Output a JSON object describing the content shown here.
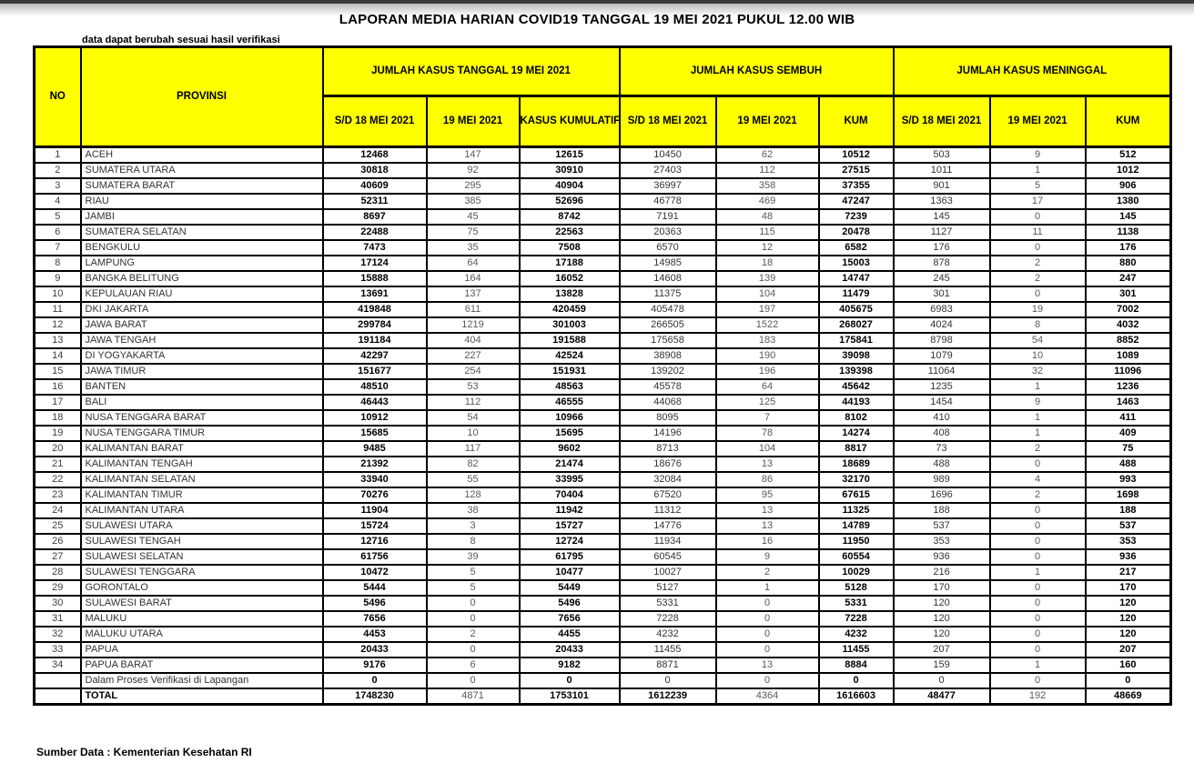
{
  "page": {
    "title": "LAPORAN MEDIA HARIAN COVID19 TANGGAL 19 MEI 2021 PUKUL 12.00 WIB",
    "note": "data dapat berubah sesuai hasil verifikasi",
    "source": "Sumber Data : Kementerian Kesehatan RI"
  },
  "colors": {
    "header_bg": "#FFFF00",
    "border": "#000000",
    "muted_number": "#595959"
  },
  "table": {
    "columns": {
      "no": "NO",
      "provinsi": "PROVINSI",
      "group_kasus": "JUMLAH KASUS TANGGAL 19 MEI 2021",
      "group_sembuh": "JUMLAH KASUS SEMBUH",
      "group_meninggal": "JUMLAH KASUS MENINGGAL"
    },
    "sub_headers": [
      "S/D 18 MEI 2021",
      "19 MEI 2021",
      "KASUS KUMULATIF",
      "S/D 18 MEI 2021",
      "19 MEI 2021",
      "KUM",
      "S/D 18 MEI 2021",
      "19 MEI 2021",
      "KUM"
    ],
    "rows": [
      {
        "no": "1",
        "provinsi": "ACEH",
        "k_sd": "12468",
        "k_19": "147",
        "k_kum": "12615",
        "s_sd": "10450",
        "s_19": "62",
        "s_kum": "10512",
        "m_sd": "503",
        "m_19": "9",
        "m_kum": "512"
      },
      {
        "no": "2",
        "provinsi": "SUMATERA UTARA",
        "k_sd": "30818",
        "k_19": "92",
        "k_kum": "30910",
        "s_sd": "27403",
        "s_19": "112",
        "s_kum": "27515",
        "m_sd": "1011",
        "m_19": "1",
        "m_kum": "1012"
      },
      {
        "no": "3",
        "provinsi": "SUMATERA BARAT",
        "k_sd": "40609",
        "k_19": "295",
        "k_kum": "40904",
        "s_sd": "36997",
        "s_19": "358",
        "s_kum": "37355",
        "m_sd": "901",
        "m_19": "5",
        "m_kum": "906"
      },
      {
        "no": "4",
        "provinsi": "RIAU",
        "k_sd": "52311",
        "k_19": "385",
        "k_kum": "52696",
        "s_sd": "46778",
        "s_19": "469",
        "s_kum": "47247",
        "m_sd": "1363",
        "m_19": "17",
        "m_kum": "1380"
      },
      {
        "no": "5",
        "provinsi": "JAMBI",
        "k_sd": "8697",
        "k_19": "45",
        "k_kum": "8742",
        "s_sd": "7191",
        "s_19": "48",
        "s_kum": "7239",
        "m_sd": "145",
        "m_19": "0",
        "m_kum": "145"
      },
      {
        "no": "6",
        "provinsi": "SUMATERA SELATAN",
        "k_sd": "22488",
        "k_19": "75",
        "k_kum": "22563",
        "s_sd": "20363",
        "s_19": "115",
        "s_kum": "20478",
        "m_sd": "1127",
        "m_19": "11",
        "m_kum": "1138"
      },
      {
        "no": "7",
        "provinsi": "BENGKULU",
        "k_sd": "7473",
        "k_19": "35",
        "k_kum": "7508",
        "s_sd": "6570",
        "s_19": "12",
        "s_kum": "6582",
        "m_sd": "176",
        "m_19": "0",
        "m_kum": "176"
      },
      {
        "no": "8",
        "provinsi": "LAMPUNG",
        "k_sd": "17124",
        "k_19": "64",
        "k_kum": "17188",
        "s_sd": "14985",
        "s_19": "18",
        "s_kum": "15003",
        "m_sd": "878",
        "m_19": "2",
        "m_kum": "880"
      },
      {
        "no": "9",
        "provinsi": "BANGKA BELITUNG",
        "k_sd": "15888",
        "k_19": "164",
        "k_kum": "16052",
        "s_sd": "14608",
        "s_19": "139",
        "s_kum": "14747",
        "m_sd": "245",
        "m_19": "2",
        "m_kum": "247"
      },
      {
        "no": "10",
        "provinsi": "KEPULAUAN RIAU",
        "k_sd": "13691",
        "k_19": "137",
        "k_kum": "13828",
        "s_sd": "11375",
        "s_19": "104",
        "s_kum": "11479",
        "m_sd": "301",
        "m_19": "0",
        "m_kum": "301"
      },
      {
        "no": "11",
        "provinsi": "DKI JAKARTA",
        "k_sd": "419848",
        "k_19": "611",
        "k_kum": "420459",
        "s_sd": "405478",
        "s_19": "197",
        "s_kum": "405675",
        "m_sd": "6983",
        "m_19": "19",
        "m_kum": "7002"
      },
      {
        "no": "12",
        "provinsi": "JAWA BARAT",
        "k_sd": "299784",
        "k_19": "1219",
        "k_kum": "301003",
        "s_sd": "266505",
        "s_19": "1522",
        "s_kum": "268027",
        "m_sd": "4024",
        "m_19": "8",
        "m_kum": "4032"
      },
      {
        "no": "13",
        "provinsi": "JAWA TENGAH",
        "k_sd": "191184",
        "k_19": "404",
        "k_kum": "191588",
        "s_sd": "175658",
        "s_19": "183",
        "s_kum": "175841",
        "m_sd": "8798",
        "m_19": "54",
        "m_kum": "8852"
      },
      {
        "no": "14",
        "provinsi": "DI YOGYAKARTA",
        "k_sd": "42297",
        "k_19": "227",
        "k_kum": "42524",
        "s_sd": "38908",
        "s_19": "190",
        "s_kum": "39098",
        "m_sd": "1079",
        "m_19": "10",
        "m_kum": "1089"
      },
      {
        "no": "15",
        "provinsi": "JAWA TIMUR",
        "k_sd": "151677",
        "k_19": "254",
        "k_kum": "151931",
        "s_sd": "139202",
        "s_19": "196",
        "s_kum": "139398",
        "m_sd": "11064",
        "m_19": "32",
        "m_kum": "11096"
      },
      {
        "no": "16",
        "provinsi": "BANTEN",
        "k_sd": "48510",
        "k_19": "53",
        "k_kum": "48563",
        "s_sd": "45578",
        "s_19": "64",
        "s_kum": "45642",
        "m_sd": "1235",
        "m_19": "1",
        "m_kum": "1236"
      },
      {
        "no": "17",
        "provinsi": "BALI",
        "k_sd": "46443",
        "k_19": "112",
        "k_kum": "46555",
        "s_sd": "44068",
        "s_19": "125",
        "s_kum": "44193",
        "m_sd": "1454",
        "m_19": "9",
        "m_kum": "1463"
      },
      {
        "no": "18",
        "provinsi": "NUSA TENGGARA BARAT",
        "k_sd": "10912",
        "k_19": "54",
        "k_kum": "10966",
        "s_sd": "8095",
        "s_19": "7",
        "s_kum": "8102",
        "m_sd": "410",
        "m_19": "1",
        "m_kum": "411"
      },
      {
        "no": "19",
        "provinsi": "NUSA TENGGARA TIMUR",
        "k_sd": "15685",
        "k_19": "10",
        "k_kum": "15695",
        "s_sd": "14196",
        "s_19": "78",
        "s_kum": "14274",
        "m_sd": "408",
        "m_19": "1",
        "m_kum": "409"
      },
      {
        "no": "20",
        "provinsi": "KALIMANTAN BARAT",
        "k_sd": "9485",
        "k_19": "117",
        "k_kum": "9602",
        "s_sd": "8713",
        "s_19": "104",
        "s_kum": "8817",
        "m_sd": "73",
        "m_19": "2",
        "m_kum": "75"
      },
      {
        "no": "21",
        "provinsi": "KALIMANTAN TENGAH",
        "k_sd": "21392",
        "k_19": "82",
        "k_kum": "21474",
        "s_sd": "18676",
        "s_19": "13",
        "s_kum": "18689",
        "m_sd": "488",
        "m_19": "0",
        "m_kum": "488"
      },
      {
        "no": "22",
        "provinsi": "KALIMANTAN SELATAN",
        "k_sd": "33940",
        "k_19": "55",
        "k_kum": "33995",
        "s_sd": "32084",
        "s_19": "86",
        "s_kum": "32170",
        "m_sd": "989",
        "m_19": "4",
        "m_kum": "993"
      },
      {
        "no": "23",
        "provinsi": "KALIMANTAN TIMUR",
        "k_sd": "70276",
        "k_19": "128",
        "k_kum": "70404",
        "s_sd": "67520",
        "s_19": "95",
        "s_kum": "67615",
        "m_sd": "1696",
        "m_19": "2",
        "m_kum": "1698"
      },
      {
        "no": "24",
        "provinsi": "KALIMANTAN UTARA",
        "k_sd": "11904",
        "k_19": "38",
        "k_kum": "11942",
        "s_sd": "11312",
        "s_19": "13",
        "s_kum": "11325",
        "m_sd": "188",
        "m_19": "0",
        "m_kum": "188"
      },
      {
        "no": "25",
        "provinsi": "SULAWESI UTARA",
        "k_sd": "15724",
        "k_19": "3",
        "k_kum": "15727",
        "s_sd": "14776",
        "s_19": "13",
        "s_kum": "14789",
        "m_sd": "537",
        "m_19": "0",
        "m_kum": "537"
      },
      {
        "no": "26",
        "provinsi": "SULAWESI TENGAH",
        "k_sd": "12716",
        "k_19": "8",
        "k_kum": "12724",
        "s_sd": "11934",
        "s_19": "16",
        "s_kum": "11950",
        "m_sd": "353",
        "m_19": "0",
        "m_kum": "353"
      },
      {
        "no": "27",
        "provinsi": "SULAWESI SELATAN",
        "k_sd": "61756",
        "k_19": "39",
        "k_kum": "61795",
        "s_sd": "60545",
        "s_19": "9",
        "s_kum": "60554",
        "m_sd": "936",
        "m_19": "0",
        "m_kum": "936"
      },
      {
        "no": "28",
        "provinsi": "SULAWESI TENGGARA",
        "k_sd": "10472",
        "k_19": "5",
        "k_kum": "10477",
        "s_sd": "10027",
        "s_19": "2",
        "s_kum": "10029",
        "m_sd": "216",
        "m_19": "1",
        "m_kum": "217"
      },
      {
        "no": "29",
        "provinsi": "GORONTALO",
        "k_sd": "5444",
        "k_19": "5",
        "k_kum": "5449",
        "s_sd": "5127",
        "s_19": "1",
        "s_kum": "5128",
        "m_sd": "170",
        "m_19": "0",
        "m_kum": "170"
      },
      {
        "no": "30",
        "provinsi": "SULAWESI BARAT",
        "k_sd": "5496",
        "k_19": "0",
        "k_kum": "5496",
        "s_sd": "5331",
        "s_19": "0",
        "s_kum": "5331",
        "m_sd": "120",
        "m_19": "0",
        "m_kum": "120"
      },
      {
        "no": "31",
        "provinsi": "MALUKU",
        "k_sd": "7656",
        "k_19": "0",
        "k_kum": "7656",
        "s_sd": "7228",
        "s_19": "0",
        "s_kum": "7228",
        "m_sd": "120",
        "m_19": "0",
        "m_kum": "120"
      },
      {
        "no": "32",
        "provinsi": "MALUKU UTARA",
        "k_sd": "4453",
        "k_19": "2",
        "k_kum": "4455",
        "s_sd": "4232",
        "s_19": "0",
        "s_kum": "4232",
        "m_sd": "120",
        "m_19": "0",
        "m_kum": "120"
      },
      {
        "no": "33",
        "provinsi": "PAPUA",
        "k_sd": "20433",
        "k_19": "0",
        "k_kum": "20433",
        "s_sd": "11455",
        "s_19": "0",
        "s_kum": "11455",
        "m_sd": "207",
        "m_19": "0",
        "m_kum": "207"
      },
      {
        "no": "34",
        "provinsi": "PAPUA BARAT",
        "k_sd": "9176",
        "k_19": "6",
        "k_kum": "9182",
        "s_sd": "8871",
        "s_19": "13",
        "s_kum": "8884",
        "m_sd": "159",
        "m_19": "1",
        "m_kum": "160"
      },
      {
        "no": "",
        "provinsi": "Dalam Proses Verifikasi di Lapangan",
        "k_sd": "0",
        "k_19": "0",
        "k_kum": "0",
        "s_sd": "0",
        "s_19": "0",
        "s_kum": "0",
        "m_sd": "0",
        "m_19": "0",
        "m_kum": "0"
      },
      {
        "no": "",
        "provinsi": "TOTAL",
        "emphasis": "total",
        "k_sd": "1748230",
        "k_19": "4871",
        "k_kum": "1753101",
        "s_sd": "1612239",
        "s_19": "4364",
        "s_kum": "1616603",
        "m_sd": "48477",
        "m_19": "192",
        "m_kum": "48669"
      }
    ]
  }
}
